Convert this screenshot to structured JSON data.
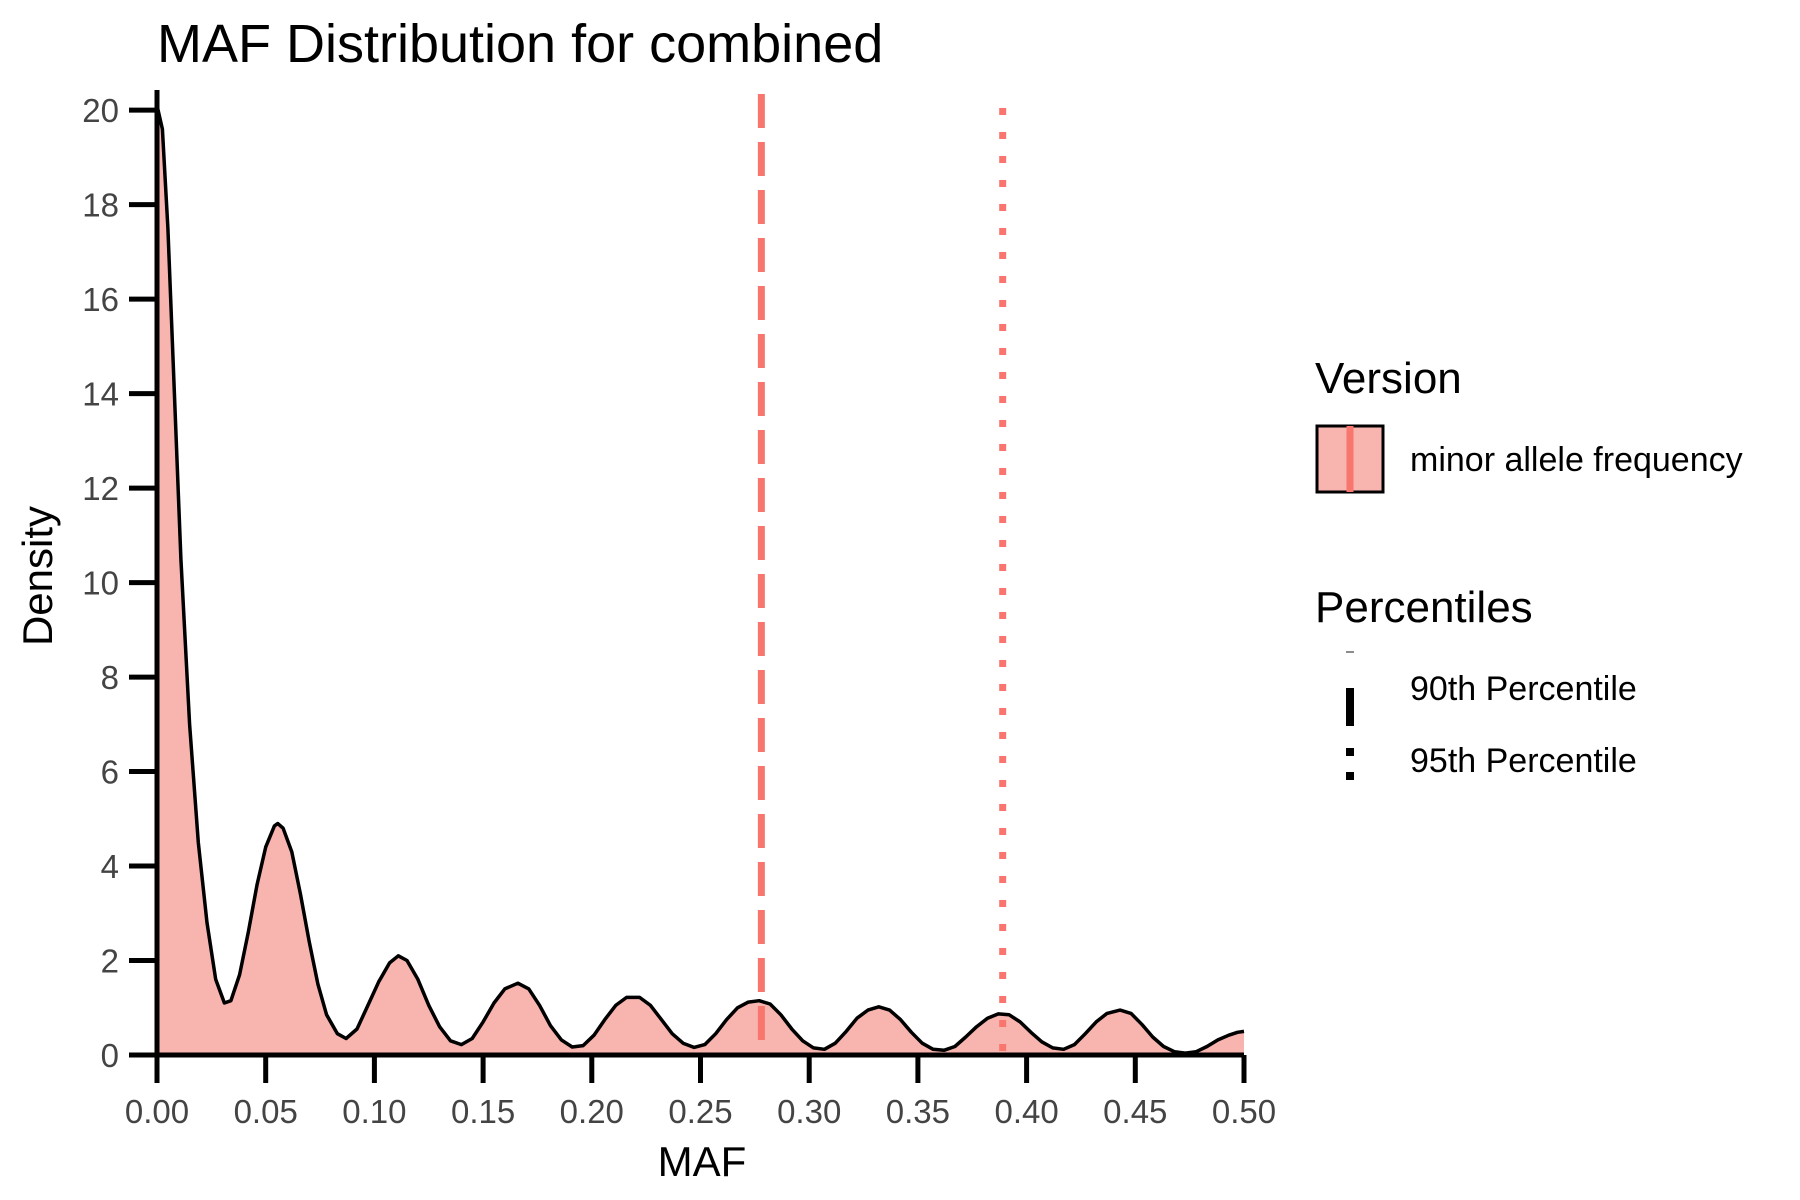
{
  "chart_data": {
    "type": "area",
    "title": "MAF Distribution for combined",
    "xlabel": "MAF",
    "ylabel": "Density",
    "xlim": [
      0,
      0.5
    ],
    "ylim": [
      0,
      20.3
    ],
    "x_ticks": [
      "0.00",
      "0.05",
      "0.10",
      "0.15",
      "0.20",
      "0.25",
      "0.30",
      "0.35",
      "0.40",
      "0.45",
      "0.50"
    ],
    "y_ticks": [
      "0",
      "2",
      "4",
      "6",
      "8",
      "10",
      "12",
      "14",
      "16",
      "18",
      "20"
    ],
    "grid": false,
    "series": [
      {
        "name": "minor allele frequency",
        "fill": "#f8b5b0",
        "stroke": "#000000",
        "points": [
          [
            0.0,
            20.1
          ],
          [
            0.0025,
            19.6
          ],
          [
            0.005,
            17.5
          ],
          [
            0.008,
            14.0
          ],
          [
            0.011,
            10.5
          ],
          [
            0.015,
            7.0
          ],
          [
            0.019,
            4.5
          ],
          [
            0.023,
            2.8
          ],
          [
            0.027,
            1.6
          ],
          [
            0.031,
            1.1
          ],
          [
            0.034,
            1.15
          ],
          [
            0.038,
            1.7
          ],
          [
            0.042,
            2.6
          ],
          [
            0.046,
            3.6
          ],
          [
            0.05,
            4.4
          ],
          [
            0.054,
            4.85
          ],
          [
            0.0555,
            4.9
          ],
          [
            0.058,
            4.8
          ],
          [
            0.062,
            4.3
          ],
          [
            0.066,
            3.4
          ],
          [
            0.07,
            2.4
          ],
          [
            0.074,
            1.5
          ],
          [
            0.078,
            0.85
          ],
          [
            0.083,
            0.45
          ],
          [
            0.087,
            0.35
          ],
          [
            0.092,
            0.55
          ],
          [
            0.097,
            1.05
          ],
          [
            0.102,
            1.55
          ],
          [
            0.107,
            1.95
          ],
          [
            0.111,
            2.1
          ],
          [
            0.115,
            2.0
          ],
          [
            0.12,
            1.6
          ],
          [
            0.125,
            1.05
          ],
          [
            0.13,
            0.6
          ],
          [
            0.135,
            0.3
          ],
          [
            0.14,
            0.22
          ],
          [
            0.145,
            0.35
          ],
          [
            0.15,
            0.7
          ],
          [
            0.155,
            1.1
          ],
          [
            0.16,
            1.4
          ],
          [
            0.166,
            1.52
          ],
          [
            0.171,
            1.4
          ],
          [
            0.176,
            1.05
          ],
          [
            0.181,
            0.62
          ],
          [
            0.186,
            0.32
          ],
          [
            0.191,
            0.17
          ],
          [
            0.196,
            0.2
          ],
          [
            0.201,
            0.42
          ],
          [
            0.206,
            0.75
          ],
          [
            0.211,
            1.05
          ],
          [
            0.216,
            1.22
          ],
          [
            0.222,
            1.22
          ],
          [
            0.227,
            1.05
          ],
          [
            0.232,
            0.75
          ],
          [
            0.237,
            0.45
          ],
          [
            0.242,
            0.25
          ],
          [
            0.247,
            0.16
          ],
          [
            0.252,
            0.22
          ],
          [
            0.257,
            0.45
          ],
          [
            0.262,
            0.75
          ],
          [
            0.267,
            1.0
          ],
          [
            0.272,
            1.12
          ],
          [
            0.277,
            1.15
          ],
          [
            0.282,
            1.08
          ],
          [
            0.287,
            0.85
          ],
          [
            0.292,
            0.55
          ],
          [
            0.297,
            0.3
          ],
          [
            0.302,
            0.15
          ],
          [
            0.307,
            0.12
          ],
          [
            0.312,
            0.25
          ],
          [
            0.317,
            0.5
          ],
          [
            0.322,
            0.78
          ],
          [
            0.327,
            0.95
          ],
          [
            0.332,
            1.02
          ],
          [
            0.337,
            0.95
          ],
          [
            0.342,
            0.75
          ],
          [
            0.347,
            0.48
          ],
          [
            0.352,
            0.25
          ],
          [
            0.357,
            0.12
          ],
          [
            0.362,
            0.1
          ],
          [
            0.367,
            0.18
          ],
          [
            0.372,
            0.38
          ],
          [
            0.377,
            0.6
          ],
          [
            0.382,
            0.78
          ],
          [
            0.387,
            0.87
          ],
          [
            0.392,
            0.85
          ],
          [
            0.397,
            0.7
          ],
          [
            0.402,
            0.48
          ],
          [
            0.407,
            0.28
          ],
          [
            0.412,
            0.15
          ],
          [
            0.417,
            0.12
          ],
          [
            0.422,
            0.22
          ],
          [
            0.427,
            0.45
          ],
          [
            0.432,
            0.7
          ],
          [
            0.437,
            0.88
          ],
          [
            0.443,
            0.95
          ],
          [
            0.448,
            0.88
          ],
          [
            0.453,
            0.65
          ],
          [
            0.458,
            0.38
          ],
          [
            0.463,
            0.18
          ],
          [
            0.468,
            0.07
          ],
          [
            0.473,
            0.04
          ],
          [
            0.478,
            0.07
          ],
          [
            0.483,
            0.18
          ],
          [
            0.488,
            0.32
          ],
          [
            0.493,
            0.42
          ],
          [
            0.497,
            0.48
          ],
          [
            0.5,
            0.5
          ]
        ]
      }
    ],
    "vlines": [
      {
        "x": 0.278,
        "label": "90th Percentile",
        "style": "dashed",
        "color": "#f8766d"
      },
      {
        "x": 0.389,
        "label": "95th Percentile",
        "style": "dotted",
        "color": "#f8766d"
      }
    ],
    "legend": {
      "placement": "right",
      "version_title": "Version",
      "version_label": "minor allele frequency",
      "percentiles_title": "Percentiles"
    }
  }
}
